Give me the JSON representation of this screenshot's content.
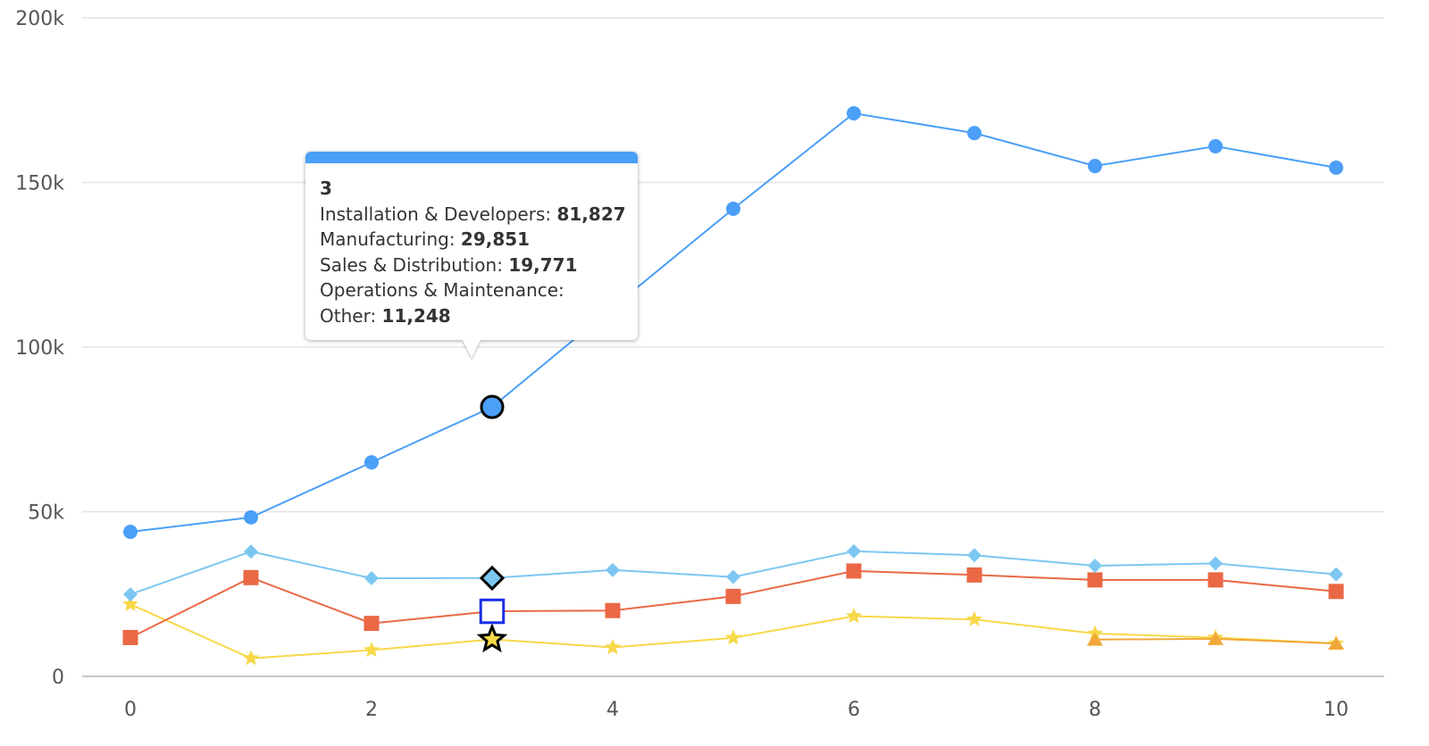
{
  "chart_data": {
    "type": "line",
    "x": [
      0,
      1,
      2,
      3,
      4,
      5,
      6,
      7,
      8,
      9,
      10
    ],
    "xticks": [
      0,
      2,
      4,
      6,
      8,
      10
    ],
    "xlim": [
      0,
      10
    ],
    "ylim": [
      0,
      200000
    ],
    "yticks": [
      0,
      50000,
      100000,
      150000,
      200000
    ],
    "ytick_labels": [
      "0",
      "50k",
      "100k",
      "150k",
      "200k"
    ],
    "grid": "horizontal",
    "legend": "none",
    "series": [
      {
        "name": "Installation & Developers",
        "color": "#4b9ff7",
        "marker": "circle",
        "values": [
          43900,
          48300,
          65000,
          81827,
          112000,
          142000,
          171000,
          165000,
          155000,
          161000,
          154500
        ]
      },
      {
        "name": "Manufacturing",
        "color": "#7cc7f2",
        "marker": "diamond",
        "values": [
          24900,
          37900,
          29800,
          29851,
          32300,
          30200,
          38000,
          36800,
          33600,
          34300,
          31000
        ]
      },
      {
        "name": "Sales & Distribution",
        "color": "#ea6845",
        "marker": "square",
        "values": [
          11800,
          30000,
          16100,
          19771,
          20000,
          24300,
          32000,
          30800,
          29300,
          29300,
          25800
        ]
      },
      {
        "name": "Operations & Maintenance",
        "color": "#f1a83a",
        "marker": "triangle",
        "values": [
          null,
          null,
          null,
          null,
          null,
          null,
          null,
          null,
          11200,
          11400,
          10000
        ]
      },
      {
        "name": "Other",
        "color": "#f7d848",
        "marker": "star",
        "values": [
          21900,
          5500,
          8000,
          11248,
          8800,
          11700,
          18300,
          17300,
          13000,
          11800,
          10000
        ]
      }
    ],
    "tooltip": {
      "x": "3",
      "rows": [
        {
          "label": "Installation & Developers: ",
          "value": "81,827"
        },
        {
          "label": "Manufacturing: ",
          "value": "29,851"
        },
        {
          "label": "Sales & Distribution: ",
          "value": "19,771"
        },
        {
          "label": "Operations & Maintenance: ",
          "value": ""
        },
        {
          "label": "Other: ",
          "value": "11,248"
        }
      ]
    }
  }
}
